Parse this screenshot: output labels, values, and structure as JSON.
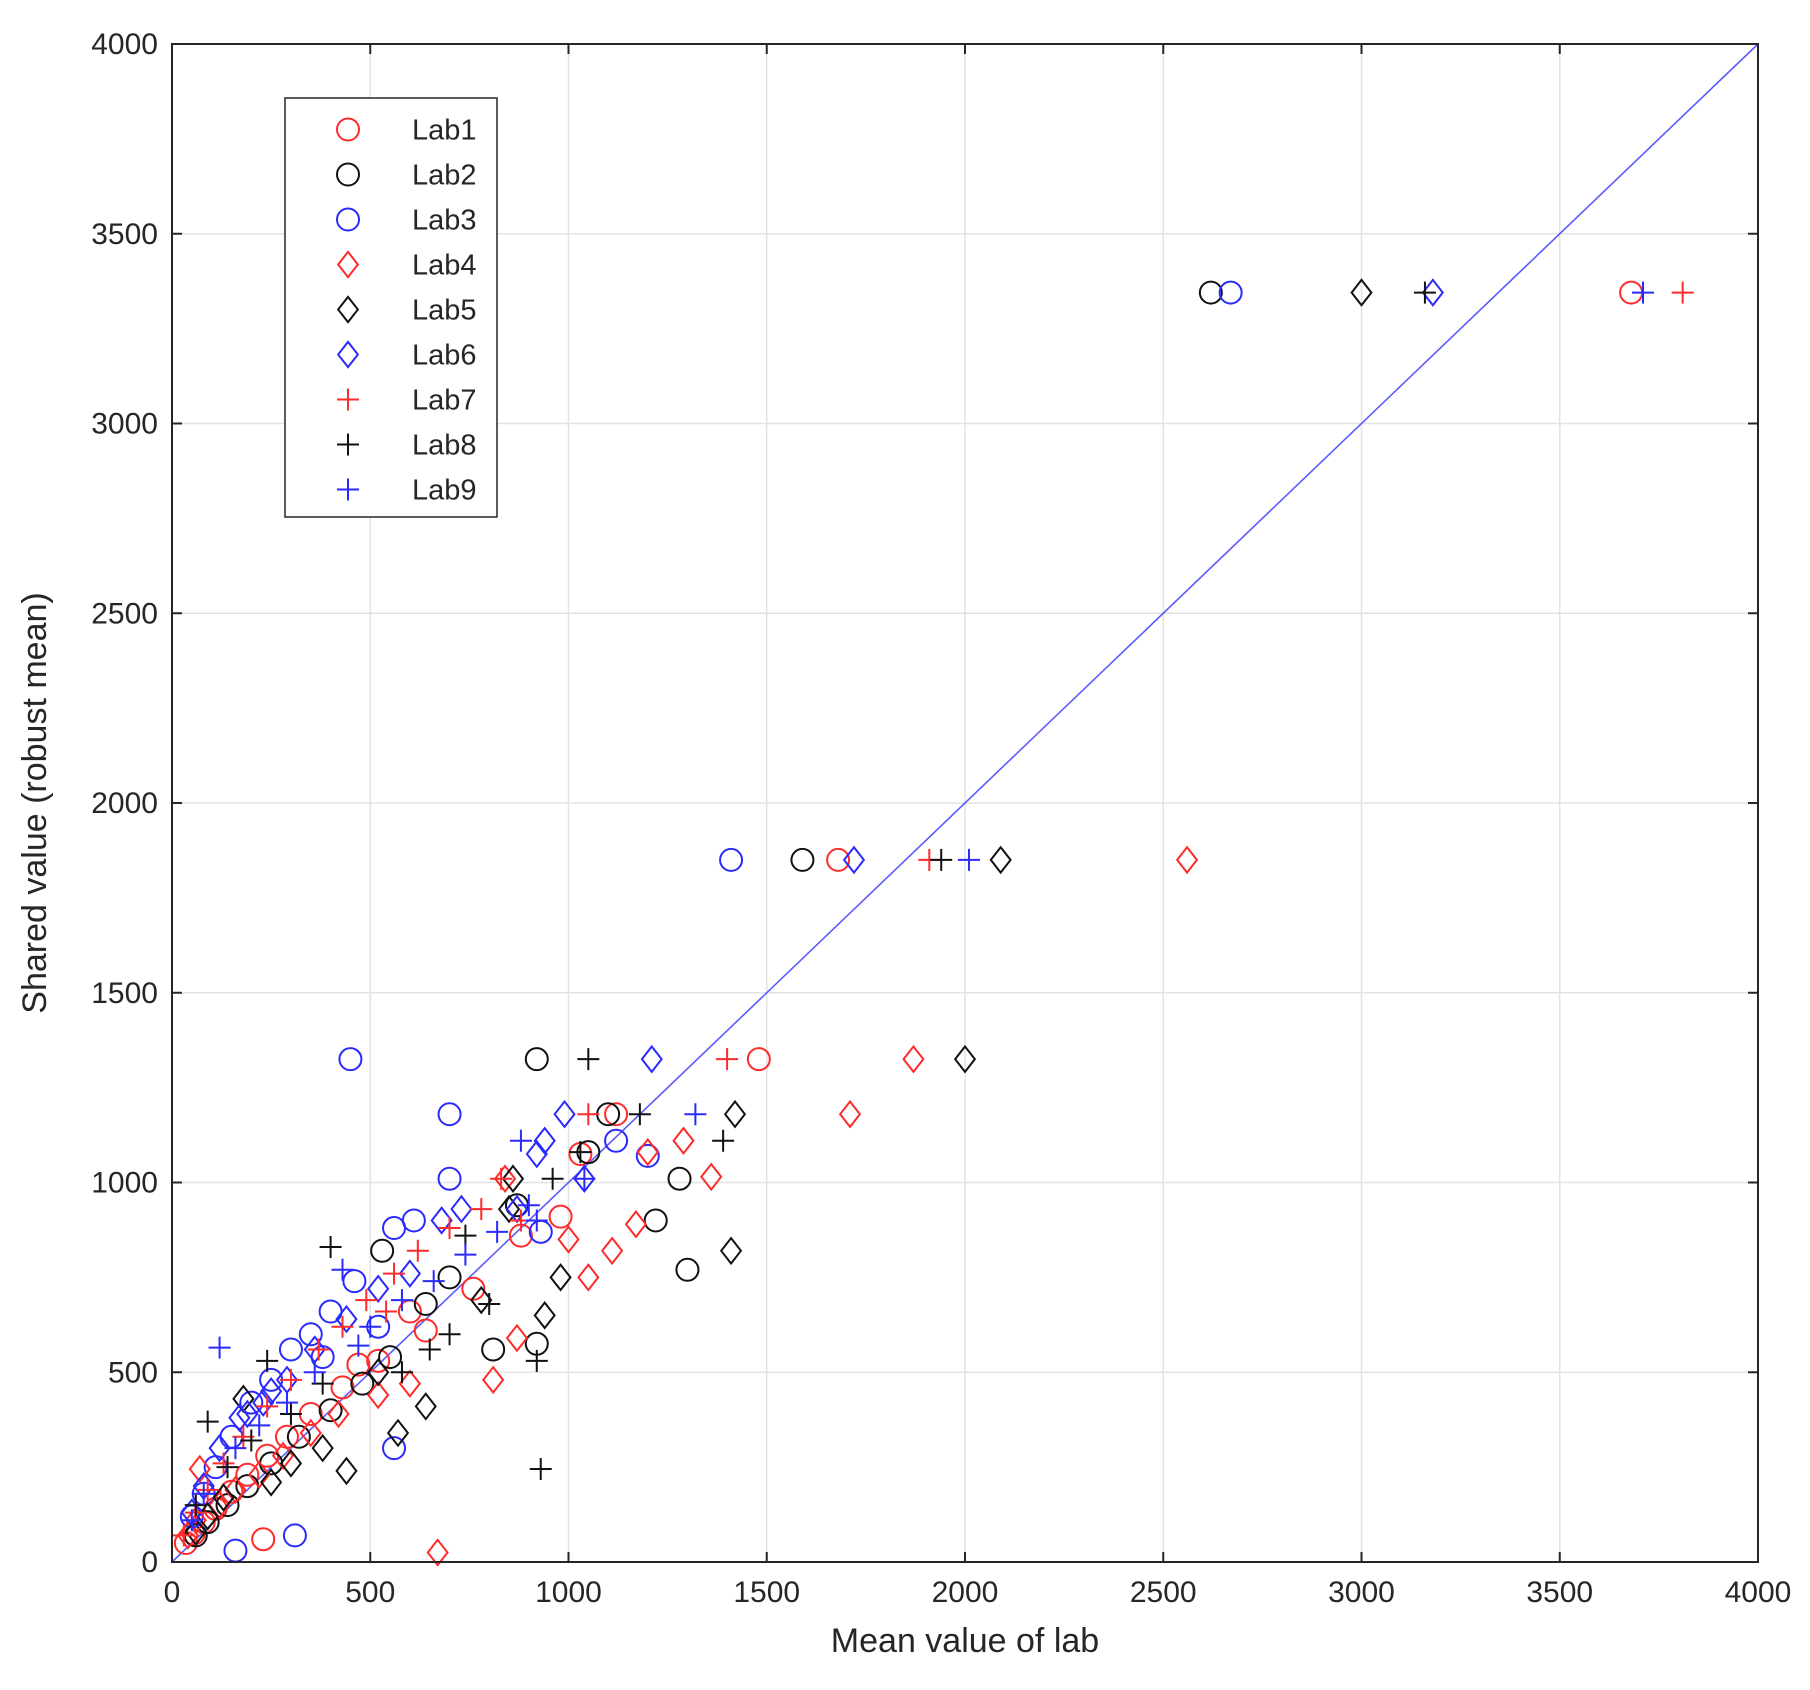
{
  "chart_data": {
    "type": "scatter",
    "title": "",
    "xlabel": "Mean value of lab",
    "ylabel": "Shared value (robust mean)",
    "xlim": [
      0,
      4000
    ],
    "ylim": [
      0,
      4000
    ],
    "xticks": [
      0,
      500,
      1000,
      1500,
      2000,
      2500,
      3000,
      3500,
      4000
    ],
    "yticks": [
      0,
      500,
      1000,
      1500,
      2000,
      2500,
      3000,
      3500,
      4000
    ],
    "xtick_labels": [
      "0",
      "500",
      "1000",
      "1500",
      "2000",
      "2500",
      "3000",
      "3500",
      "4000"
    ],
    "ytick_labels": [
      "0",
      "500",
      "1000",
      "1500",
      "2000",
      "2500",
      "3000",
      "3500",
      "4000"
    ],
    "grid": true,
    "legend_position": "top-left",
    "reference_line": {
      "x": [
        0,
        4000
      ],
      "y": [
        0,
        4000
      ],
      "color": "#5b5bff"
    },
    "series": [
      {
        "name": "Lab1",
        "marker": "circle",
        "color": "#ff2a2a",
        "x": [
          3680,
          1680,
          1480,
          1120,
          1030,
          880,
          760,
          640,
          520,
          430,
          350,
          290,
          240,
          190,
          150,
          110,
          80,
          55,
          35,
          600,
          470,
          980,
          230
        ],
        "y": [
          3345,
          1850,
          1325,
          1180,
          1075,
          860,
          720,
          610,
          530,
          460,
          390,
          330,
          280,
          230,
          185,
          140,
          105,
          75,
          50,
          660,
          520,
          910,
          60
        ]
      },
      {
        "name": "Lab2",
        "marker": "circle",
        "color": "#111111",
        "x": [
          2620,
          1590,
          920,
          1100,
          1220,
          1300,
          1280,
          920,
          810,
          640,
          550,
          480,
          400,
          320,
          250,
          190,
          140,
          90,
          60,
          530,
          700,
          870,
          1050
        ],
        "y": [
          3345,
          1850,
          1325,
          1180,
          900,
          770,
          1010,
          575,
          560,
          680,
          540,
          470,
          400,
          330,
          260,
          200,
          150,
          105,
          70,
          820,
          750,
          940,
          1080
        ]
      },
      {
        "name": "Lab3",
        "marker": "circle",
        "color": "#2a2aff",
        "x": [
          2670,
          1410,
          450,
          700,
          1200,
          1120,
          700,
          610,
          560,
          460,
          400,
          350,
          300,
          250,
          200,
          150,
          110,
          80,
          50,
          310,
          560,
          160,
          520,
          380,
          930
        ],
        "y": [
          3345,
          1850,
          1325,
          1180,
          1070,
          1110,
          1010,
          900,
          880,
          740,
          660,
          600,
          560,
          480,
          420,
          330,
          250,
          180,
          120,
          70,
          300,
          30,
          620,
          540,
          870
        ]
      },
      {
        "name": "Lab4",
        "marker": "diamond",
        "color": "#ff2a2a",
        "x": [
          2560,
          1870,
          1710,
          1360,
          1290,
          1200,
          1170,
          1050,
          1000,
          810,
          870,
          670,
          600,
          520,
          420,
          350,
          280,
          220,
          160,
          120,
          70,
          60,
          40,
          840,
          1110
        ],
        "y": [
          1850,
          1325,
          1180,
          1015,
          1110,
          1080,
          890,
          750,
          850,
          480,
          590,
          25,
          470,
          440,
          390,
          340,
          280,
          230,
          190,
          150,
          245,
          110,
          70,
          1010,
          820
        ]
      },
      {
        "name": "Lab5",
        "marker": "diamond",
        "color": "#111111",
        "x": [
          3000,
          2090,
          2000,
          1420,
          1410,
          940,
          860,
          780,
          640,
          570,
          520,
          440,
          380,
          300,
          250,
          180,
          130,
          90,
          60,
          850,
          980
        ],
        "y": [
          3345,
          1850,
          1325,
          1180,
          820,
          650,
          1010,
          690,
          410,
          340,
          500,
          240,
          300,
          260,
          210,
          430,
          170,
          120,
          80,
          930,
          750
        ]
      },
      {
        "name": "Lab6",
        "marker": "diamond",
        "color": "#2a2aff",
        "x": [
          3180,
          1720,
          1210,
          990,
          940,
          1040,
          870,
          730,
          680,
          600,
          520,
          440,
          360,
          290,
          230,
          170,
          120,
          80,
          50,
          250,
          190,
          920
        ],
        "y": [
          3345,
          1850,
          1325,
          1180,
          1110,
          1010,
          930,
          930,
          900,
          760,
          720,
          640,
          560,
          480,
          420,
          380,
          300,
          200,
          130,
          450,
          390,
          1075
        ]
      },
      {
        "name": "Lab7",
        "marker": "plus",
        "color": "#ff2a2a",
        "x": [
          3810,
          1910,
          1400,
          1050,
          830,
          780,
          700,
          620,
          560,
          490,
          430,
          370,
          300,
          240,
          180,
          130,
          90,
          60,
          30,
          540,
          880
        ],
        "y": [
          3345,
          1850,
          1325,
          1180,
          1010,
          930,
          880,
          820,
          760,
          690,
          620,
          560,
          480,
          410,
          330,
          260,
          190,
          130,
          70,
          660,
          900
        ]
      },
      {
        "name": "Lab8",
        "marker": "plus",
        "color": "#111111",
        "x": [
          3160,
          1940,
          1050,
          1180,
          1390,
          1030,
          930,
          920,
          800,
          700,
          650,
          580,
          400,
          240,
          90,
          60,
          380,
          300,
          200,
          140,
          740,
          960
        ],
        "y": [
          3345,
          1850,
          1325,
          1180,
          1110,
          1080,
          245,
          530,
          680,
          600,
          560,
          500,
          830,
          530,
          370,
          150,
          470,
          390,
          320,
          250,
          860,
          1010
        ]
      },
      {
        "name": "Lab9",
        "marker": "plus",
        "color": "#2a2aff",
        "x": [
          3710,
          2010,
          1320,
          880,
          1040,
          900,
          820,
          740,
          660,
          580,
          500,
          430,
          360,
          290,
          220,
          160,
          120,
          80,
          50,
          470,
          920
        ],
        "y": [
          3345,
          1850,
          1180,
          1110,
          1010,
          940,
          870,
          810,
          740,
          690,
          620,
          770,
          500,
          420,
          360,
          300,
          565,
          180,
          110,
          570,
          900
        ]
      }
    ]
  }
}
